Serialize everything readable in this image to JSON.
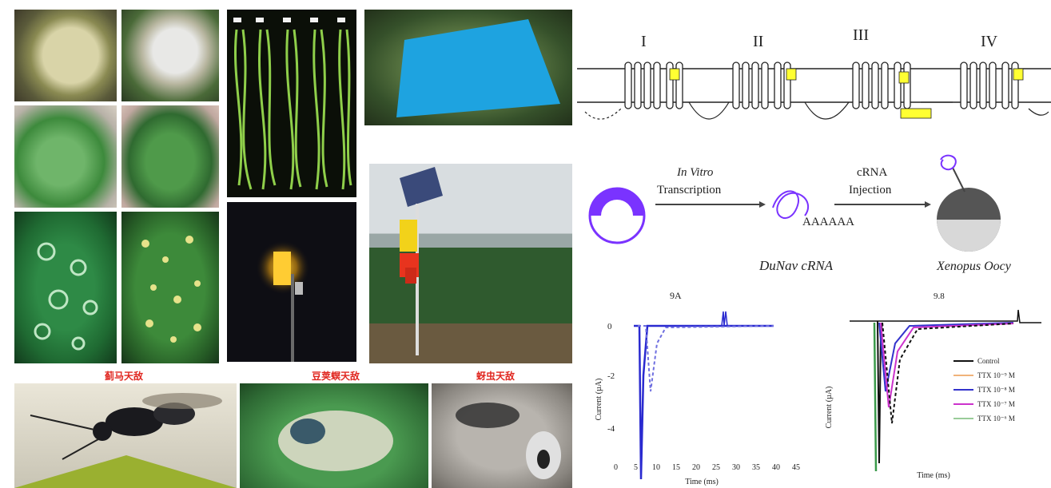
{
  "photo_panels": {
    "top_left_grid": [
      "seed-pod-1",
      "seed-pod-2",
      "green-leaf-1",
      "green-leaf-2",
      "leaf-ring-spots",
      "leaf-yellow-spots"
    ],
    "pods_photo": "long bean pods",
    "night_lamp_photo": "glowing insect lamp at night",
    "blue_card_photo": "blue sticky card",
    "solar_trap_photo": "solar insect trap in field"
  },
  "pest_labels": {
    "label1": "蓟马天敌",
    "label2": "豆荚螟天敌",
    "label3": "蚜虫天敌"
  },
  "domain_diagram": {
    "domains": [
      "I",
      "II",
      "III",
      "IV"
    ],
    "colors": {
      "highlight": "#ffff33",
      "line": "#222222"
    }
  },
  "workflow": {
    "step1_line1": "In Vitro",
    "step1_line2": "Transcription",
    "step2_line1": "cRNA",
    "step2_line2": "Injection",
    "polyA": "AAAAAA",
    "crna_label": "DuNav cRNA",
    "oocyte_label": "Xenopus Oocy",
    "colors": {
      "plasmid": "#7a33ff",
      "oocyte": "#555555"
    }
  },
  "chart_left": {
    "title": "9A",
    "ylabel": "Current (µA)",
    "xlabel": "Time (ms)",
    "y_ticks": [
      "0",
      "-2",
      "-4"
    ],
    "x_ticks": [
      "0",
      "5",
      "10",
      "15",
      "20",
      "25",
      "30",
      "35",
      "40",
      "45"
    ]
  },
  "chart_right": {
    "title": "9.8",
    "ylabel": "Current (µA)",
    "xlabel": "Time (ms)",
    "legend": [
      {
        "label": "Control",
        "color": "#111111"
      },
      {
        "label": "TTX 10⁻⁹ M",
        "color": "#f0b37a"
      },
      {
        "label": "TTX 10⁻⁸ M",
        "color": "#3333cc"
      },
      {
        "label": "TTX 10⁻⁷ M",
        "color": "#cc33cc"
      },
      {
        "label": "TTX 10⁻⁶ M",
        "color": "#99cc99"
      }
    ]
  }
}
